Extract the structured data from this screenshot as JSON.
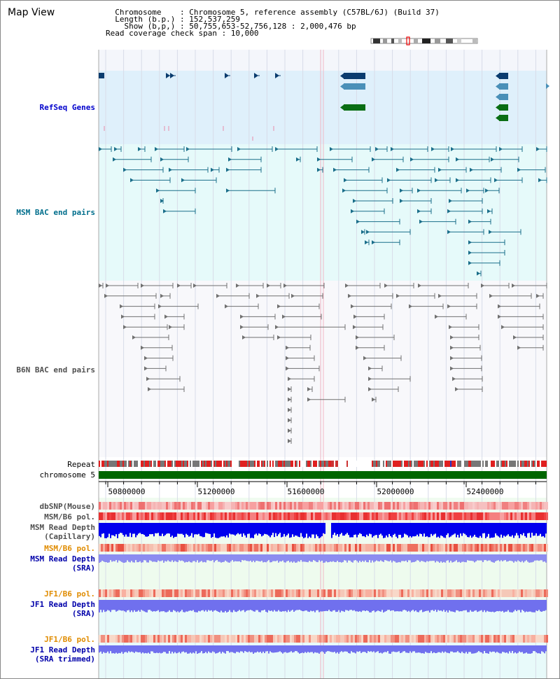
{
  "header": {
    "title": "Map View",
    "info_lines": [
      "  Chromosome    : Chromosome 5, reference assembly (C57BL/6J) (Build 37)",
      "  Length (b.p.) : 152,537,259",
      "    Show (b,p,) : 50,755,653-52,756,128 : 2,000,476 bp",
      "Read coverage check span : 10,000"
    ]
  },
  "tracks": {
    "refseq": "RefSeq Genes",
    "msm_bac": "MSM BAC end pairs",
    "b6n_bac": "B6N BAC end pairs",
    "repeat": "Repeat",
    "chromosome": "chromosome 5",
    "dbsnp": "dbSNP(Mouse)",
    "msm_b6_pol_1": "MSM/B6 pol.",
    "msm_read_depth_cap_1": "MSM Read Depth",
    "msm_read_depth_cap_2": "(Capillary)",
    "msm_b6_pol_2": "MSM/B6 pol.",
    "msm_read_depth_sra_1": "MSM Read Depth",
    "msm_read_depth_sra_2": "(SRA)",
    "jf1_b6_pol_1": "JF1/B6 pol.",
    "jf1_read_depth_sra_1": "JF1 Read Depth",
    "jf1_read_depth_sra_2": "(SRA)",
    "jf1_b6_pol_2": "JF1/B6 pol.",
    "jf1_read_depth_trim_1": "JF1 Read Depth",
    "jf1_read_depth_trim_2": "(SRA trimmed)"
  },
  "axis": {
    "ticks": [
      "50800000",
      "51200000",
      "51600000",
      "52000000",
      "52400000"
    ]
  },
  "colors": {
    "refseq_label": "#0000cc",
    "msm_label": "#006e8c",
    "b6n_label": "#505050",
    "pol_msm_label": "#e08c00",
    "depth_label": "#0000aa",
    "refseq_bg": "#dff0fb",
    "msm_bg": "#e6fafa",
    "chrom_bar": "#006600",
    "depth_blue": "#0000ee",
    "depth_light": "#8c8cf0"
  }
}
